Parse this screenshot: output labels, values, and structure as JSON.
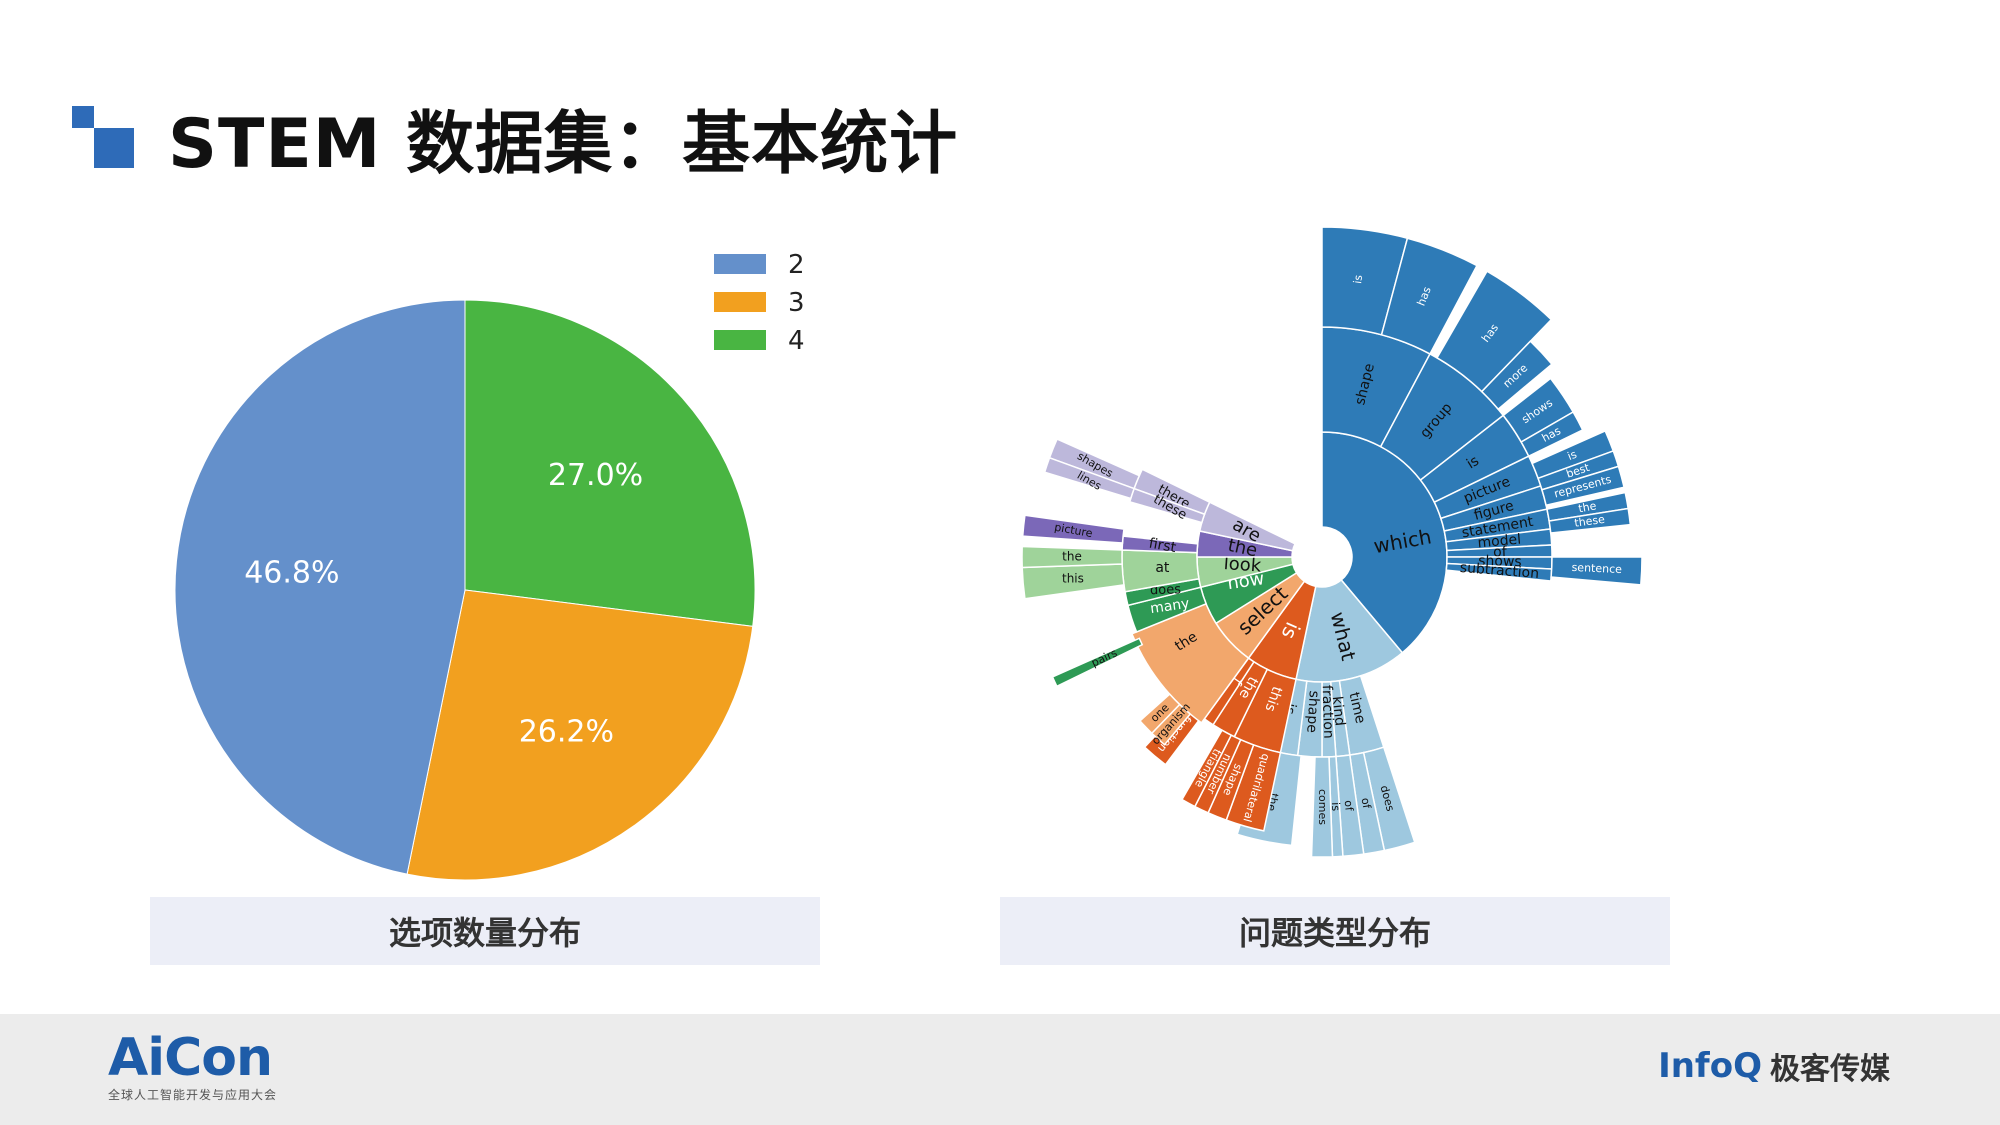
{
  "slide": {
    "title": "STEM 数据集：基本统计",
    "caption_left": "选项数量分布",
    "caption_right": "问题类型分布"
  },
  "footer": {
    "brand_left": "AiCon",
    "brand_left_sub": "全球人工智能开发与应用大会",
    "brand_right_en": "InfoQ",
    "brand_right_cn": "极客传媒"
  },
  "chart_data": [
    {
      "type": "pie",
      "title": "",
      "categories": [
        "2",
        "3",
        "4"
      ],
      "values": [
        46.8,
        26.2,
        27.0
      ],
      "labels": [
        "46.8%",
        "26.2%",
        "27.0%"
      ],
      "colors": [
        "#6490cb",
        "#f2a01f",
        "#49b542"
      ],
      "legend": "top-right"
    },
    {
      "type": "sunburst",
      "title": "",
      "root_groups": [
        {
          "name": "which",
          "color": "#2e7bb7",
          "children": [
            "shape",
            "group",
            "is",
            "picture",
            "figure",
            "statement",
            "model",
            "of",
            "shows",
            "subtraction"
          ],
          "outer": [
            "is",
            "has",
            "has",
            "more",
            "shows",
            "has",
            "is",
            "best",
            "represents",
            "the",
            "these",
            "sentence"
          ]
        },
        {
          "name": "what",
          "color": "#9ec8df",
          "children": [
            "time",
            "kind",
            "fraction",
            "shape",
            "is"
          ],
          "outer": [
            "does",
            "of",
            "of",
            "is",
            "comes",
            "the"
          ]
        },
        {
          "name": "is",
          "color": "#dd5a1e",
          "children": [
            "the",
            "this",
            "f"
          ],
          "outer": [
            "function",
            "triangle",
            "number",
            "pattern",
            "quadrilateral"
          ]
        },
        {
          "name": "select",
          "color": "#f2a76c",
          "children": [
            "the",
            "one",
            "organism"
          ],
          "outer": []
        },
        {
          "name": "how",
          "color": "#2e9a55",
          "children": [
            "many",
            "does"
          ],
          "outer": [
            "pairs"
          ]
        },
        {
          "name": "look",
          "color": "#9fd39a",
          "children": [
            "at",
            "the",
            "this"
          ],
          "outer": [
            "picture"
          ]
        },
        {
          "name": "the",
          "color": "#7b68b8",
          "children": [
            "first"
          ],
          "outer": [
            "picture"
          ]
        },
        {
          "name": "are",
          "color": "#bdb8db",
          "children": [
            "there",
            "these"
          ],
          "outer": [
            "shapes",
            "lines"
          ]
        }
      ]
    }
  ]
}
